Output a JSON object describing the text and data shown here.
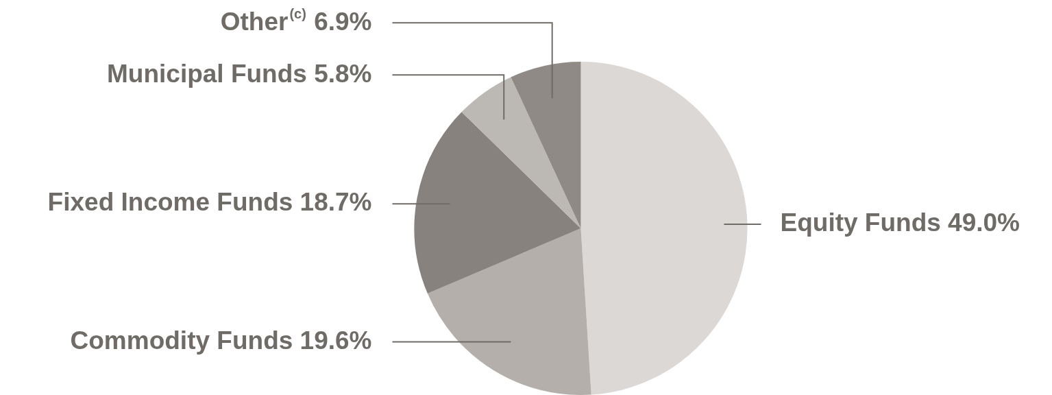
{
  "chart_data": {
    "type": "pie",
    "categories": [
      "Equity Funds",
      "Commodity Funds",
      "Fixed Income Funds",
      "Municipal Funds",
      "Other$^{(c)}$"
    ],
    "values": [
      49.0,
      19.6,
      18.7,
      5.8,
      6.9
    ],
    "colors": [
      "#dcd8d6",
      "#b4afaa",
      "#87827d",
      "#bcb8b4",
      "#8f8a85"
    ],
    "value_labels": [
      "49.0%",
      "19.6%",
      "18.7%",
      "5.8%",
      "6.9%"
    ],
    "legend": false
  }
}
